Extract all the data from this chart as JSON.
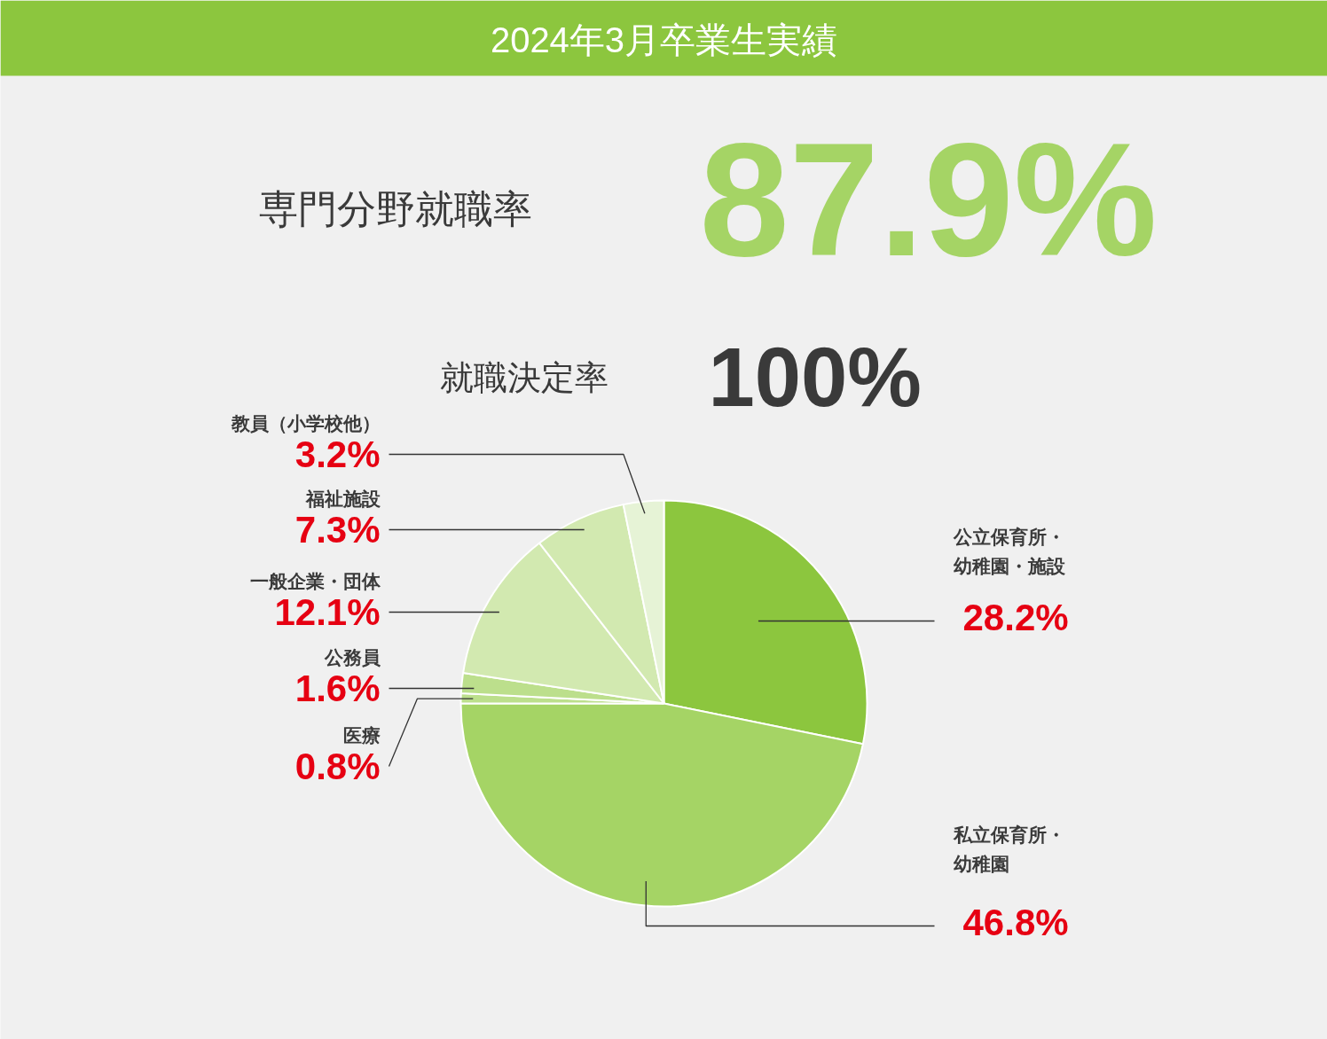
{
  "chart_data": {
    "type": "pie",
    "title": "2024年3月卒業生実績",
    "annotations": [
      "専門分野就職率",
      "87.9%",
      "就職決定率",
      "100%"
    ],
    "categories": [
      "公立保育所・幼稚園・施設",
      "私立保育所・幼稚園",
      "医療",
      "公務員",
      "一般企業・団体",
      "福祉施設",
      "教員（小学校他）"
    ],
    "values": [
      28.2,
      46.8,
      0.8,
      1.6,
      12.1,
      7.3,
      3.2
    ],
    "colors": [
      "#8cc63e",
      "#a5d465",
      "#bcdf8c",
      "#bcdf8c",
      "#d2e9b0",
      "#d2e9b0",
      "#e6f3d6"
    ],
    "value_labels": [
      "28.2%",
      "46.8%",
      "0.8%",
      "1.6%",
      "12.1%",
      "7.3%",
      "3.2%"
    ]
  }
}
